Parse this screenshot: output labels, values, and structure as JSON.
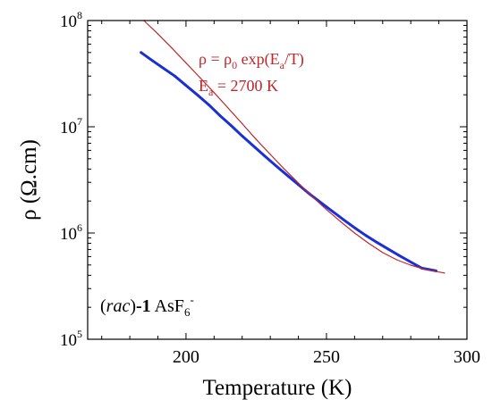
{
  "chart_data": {
    "type": "line",
    "xlabel": "Temperature (K)",
    "ylabel": "ρ (Ω.cm)",
    "xlim": [
      165,
      300
    ],
    "ylim": [
      100000,
      100000000
    ],
    "y_scale": "log",
    "x_ticks": [
      200,
      250,
      300
    ],
    "y_ticks": [
      {
        "value": 100000,
        "base": "10",
        "exp": "5"
      },
      {
        "value": 1000000,
        "base": "10",
        "exp": "6"
      },
      {
        "value": 10000000,
        "base": "10",
        "exp": "7"
      },
      {
        "value": 100000000,
        "base": "10",
        "exp": "8"
      }
    ],
    "grid": false,
    "annotation": {
      "formula": {
        "a": "ρ = ρ",
        "b": "0",
        "c": " exp(E",
        "d": "a",
        "e": "/T)"
      },
      "ea": {
        "a": "E",
        "b": "a",
        "c": " = 2700 K"
      },
      "color": "#c0262b"
    },
    "sample_label": {
      "a": "(",
      "b": "rac",
      "c": ")",
      "d": "-1",
      "e": " AsF",
      "f": "6",
      "g": "-"
    },
    "series": [
      {
        "color": "#1a2fd6",
        "x": [
          184,
          188,
          192,
          196,
          200,
          204,
          208,
          212,
          216,
          220,
          224,
          228,
          232,
          236,
          240,
          244,
          248,
          252,
          256,
          260,
          264,
          268,
          272,
          276,
          280,
          284,
          289
        ],
        "y": [
          50000000,
          42000000,
          35500000,
          30000000,
          24500000,
          20000000,
          16200000,
          12800000,
          10300000,
          8200000,
          6600000,
          5300000,
          4300000,
          3500000,
          2850000,
          2330000,
          1930000,
          1610000,
          1340000,
          1120000,
          950000,
          815000,
          705000,
          612000,
          533000,
          467000,
          440000
        ]
      },
      {
        "color": "#c0262b",
        "x": [
          185,
          190,
          195,
          200,
          205,
          210,
          215,
          220,
          225,
          230,
          235,
          240,
          245,
          250,
          255,
          260,
          265,
          270,
          275,
          280,
          285,
          292
        ],
        "y": [
          100000000,
          75000000,
          55000000,
          40000000,
          29000000,
          21000000,
          15000000,
          10700000,
          7600000,
          5500000,
          4000000,
          2950000,
          2200000,
          1660000,
          1280000,
          1000000,
          800000,
          655000,
          560000,
          498000,
          455000,
          420000
        ]
      }
    ]
  }
}
